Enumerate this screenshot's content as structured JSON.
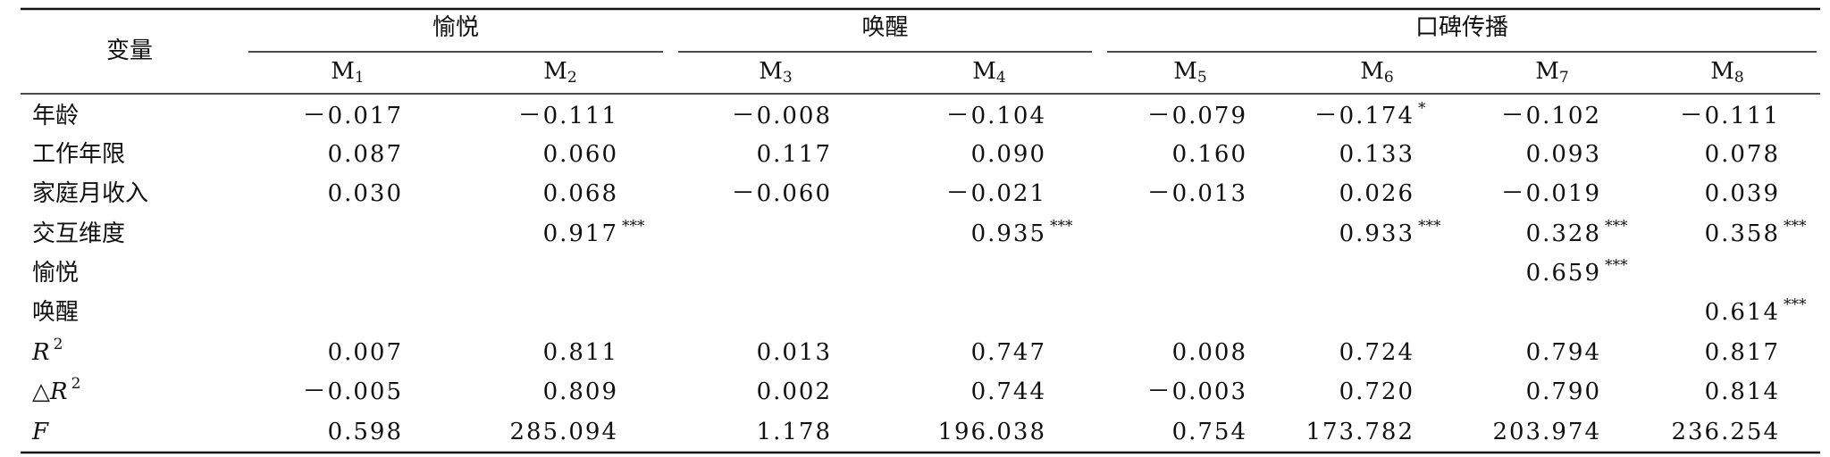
{
  "header": {
    "row_label": "变量",
    "groups": [
      {
        "title": "愉悦",
        "span": [
          0,
          1
        ]
      },
      {
        "title": "唤醒",
        "span": [
          2,
          3
        ]
      },
      {
        "title": "口碑传播",
        "span": [
          4,
          7
        ]
      }
    ],
    "models": [
      {
        "letter": "M",
        "sub": "1"
      },
      {
        "letter": "M",
        "sub": "2"
      },
      {
        "letter": "M",
        "sub": "3"
      },
      {
        "letter": "M",
        "sub": "4"
      },
      {
        "letter": "M",
        "sub": "5"
      },
      {
        "letter": "M",
        "sub": "6"
      },
      {
        "letter": "M",
        "sub": "7"
      },
      {
        "letter": "M",
        "sub": "8"
      }
    ]
  },
  "rows": [
    {
      "label": "年龄",
      "cells": [
        {
          "v": "－0.017"
        },
        {
          "v": "－0.111"
        },
        {
          "v": "－0.008"
        },
        {
          "v": "－0.104"
        },
        {
          "v": "－0.079"
        },
        {
          "v": "－0.174",
          "stars": "*"
        },
        {
          "v": "－0.102"
        },
        {
          "v": "－0.111"
        }
      ]
    },
    {
      "label": "工作年限",
      "cells": [
        {
          "v": "0.087"
        },
        {
          "v": "0.060"
        },
        {
          "v": "0.117"
        },
        {
          "v": "0.090"
        },
        {
          "v": "0.160"
        },
        {
          "v": "0.133"
        },
        {
          "v": "0.093"
        },
        {
          "v": "0.078"
        }
      ]
    },
    {
      "label": "家庭月收入",
      "cells": [
        {
          "v": "0.030"
        },
        {
          "v": "0.068"
        },
        {
          "v": "－0.060"
        },
        {
          "v": "－0.021"
        },
        {
          "v": "－0.013"
        },
        {
          "v": "0.026"
        },
        {
          "v": "－0.019"
        },
        {
          "v": "0.039"
        }
      ]
    },
    {
      "label": "交互维度",
      "cells": [
        null,
        {
          "v": "0.917",
          "stars": "***"
        },
        null,
        {
          "v": "0.935",
          "stars": "***"
        },
        null,
        {
          "v": "0.933",
          "stars": "***"
        },
        {
          "v": "0.328",
          "stars": "***"
        },
        {
          "v": "0.358",
          "stars": "***"
        }
      ]
    },
    {
      "label": "愉悦",
      "cells": [
        null,
        null,
        null,
        null,
        null,
        null,
        {
          "v": "0.659",
          "stars": "***"
        },
        null
      ]
    },
    {
      "label": "唤醒",
      "cells": [
        null,
        null,
        null,
        null,
        null,
        null,
        null,
        {
          "v": "0.614",
          "stars": "***"
        }
      ]
    },
    {
      "label": "R",
      "label_sup": "2",
      "italic": true,
      "cells": [
        {
          "v": "0.007"
        },
        {
          "v": "0.811"
        },
        {
          "v": "0.013"
        },
        {
          "v": "0.747"
        },
        {
          "v": "0.008"
        },
        {
          "v": "0.724"
        },
        {
          "v": "0.794"
        },
        {
          "v": "0.817"
        }
      ]
    },
    {
      "label_prefix": "△",
      "label": "R",
      "label_sup": "2",
      "italic": true,
      "cells": [
        {
          "v": "－0.005"
        },
        {
          "v": "0.809"
        },
        {
          "v": "0.002"
        },
        {
          "v": "0.744"
        },
        {
          "v": "－0.003"
        },
        {
          "v": "0.720"
        },
        {
          "v": "0.790"
        },
        {
          "v": "0.814"
        }
      ]
    },
    {
      "label": "F",
      "italic": true,
      "cells": [
        {
          "v": "0.598"
        },
        {
          "v": "285.094"
        },
        {
          "v": "1.178"
        },
        {
          "v": "196.038"
        },
        {
          "v": "0.754"
        },
        {
          "v": "173.782"
        },
        {
          "v": "203.974"
        },
        {
          "v": "236.254"
        }
      ]
    }
  ]
}
